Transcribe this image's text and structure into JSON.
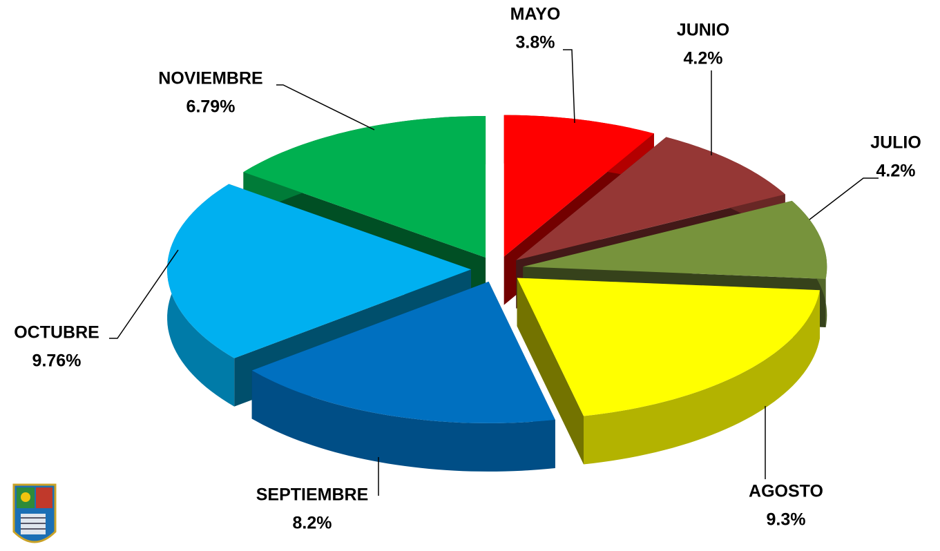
{
  "chart_data": {
    "type": "pie",
    "categories": [
      "MAYO",
      "JUNIO",
      "JULIO",
      "AGOSTO",
      "SEPTIEMBRE",
      "OCTUBRE",
      "NOVIEMBRE"
    ],
    "values": [
      3.8,
      4.2,
      4.2,
      9.3,
      8.2,
      9.76,
      6.79
    ],
    "value_labels": [
      "3.8%",
      "4.2%",
      "4.2%",
      "9.3%",
      "8.2%",
      "9.76%",
      "6.79%"
    ],
    "colors": [
      "#ff0000",
      "#953735",
      "#77933c",
      "#ffff00",
      "#0070c0",
      "#00b0f0",
      "#00b050"
    ]
  }
}
